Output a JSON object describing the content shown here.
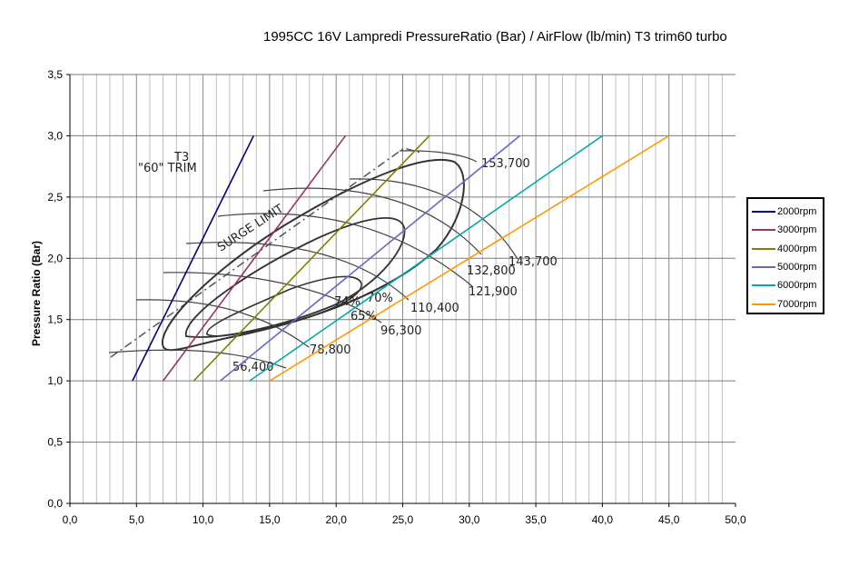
{
  "chart_data": {
    "type": "line",
    "title": "1995CC 16V Lampredi PressureRatio (Bar) / AirFlow (lb/min) T3 trim60 turbo",
    "xlabel": "",
    "ylabel": "Pressure Ratio (Bar)",
    "xlim": [
      0,
      50
    ],
    "ylim": [
      0,
      3.5
    ],
    "x_ticks": [
      "0,0",
      "5,0",
      "10,0",
      "15,0",
      "20,0",
      "25,0",
      "30,0",
      "35,0",
      "40,0",
      "45,0",
      "50,0"
    ],
    "y_ticks": [
      "0,0",
      "0,5",
      "1,0",
      "1,5",
      "2,0",
      "2,5",
      "3,0",
      "3,5"
    ],
    "grid": true,
    "legend_position": "right",
    "series": [
      {
        "name": "2000rpm",
        "color": "#000080",
        "x": [
          4.7,
          13.8
        ],
        "y": [
          1.0,
          3.0
        ]
      },
      {
        "name": "3000rpm",
        "color": "#993366",
        "x": [
          7.0,
          20.7
        ],
        "y": [
          1.0,
          3.0
        ]
      },
      {
        "name": "4000rpm",
        "color": "#808000",
        "x": [
          9.3,
          27.0
        ],
        "y": [
          1.0,
          3.0
        ]
      },
      {
        "name": "5000rpm",
        "color": "#6666cc",
        "x": [
          11.3,
          33.8
        ],
        "y": [
          1.0,
          3.0
        ]
      },
      {
        "name": "6000rpm",
        "color": "#00aaaa",
        "x": [
          13.5,
          40.0
        ],
        "y": [
          1.0,
          3.0
        ]
      },
      {
        "name": "7000rpm",
        "color": "#ff9900",
        "x": [
          15.0,
          45.0
        ],
        "y": [
          1.0,
          3.0
        ]
      }
    ],
    "compressor_map": {
      "header": "T3",
      "trim_label": "\"60\" TRIM",
      "surge_label": "SURGE LIMIT",
      "speed_lines": [
        "56,400",
        "78,800",
        "96,300",
        "110,400",
        "121,900",
        "132,800",
        "143,700",
        "153,700"
      ],
      "efficiency_islands": [
        "74%",
        "70%",
        "65%"
      ]
    }
  }
}
